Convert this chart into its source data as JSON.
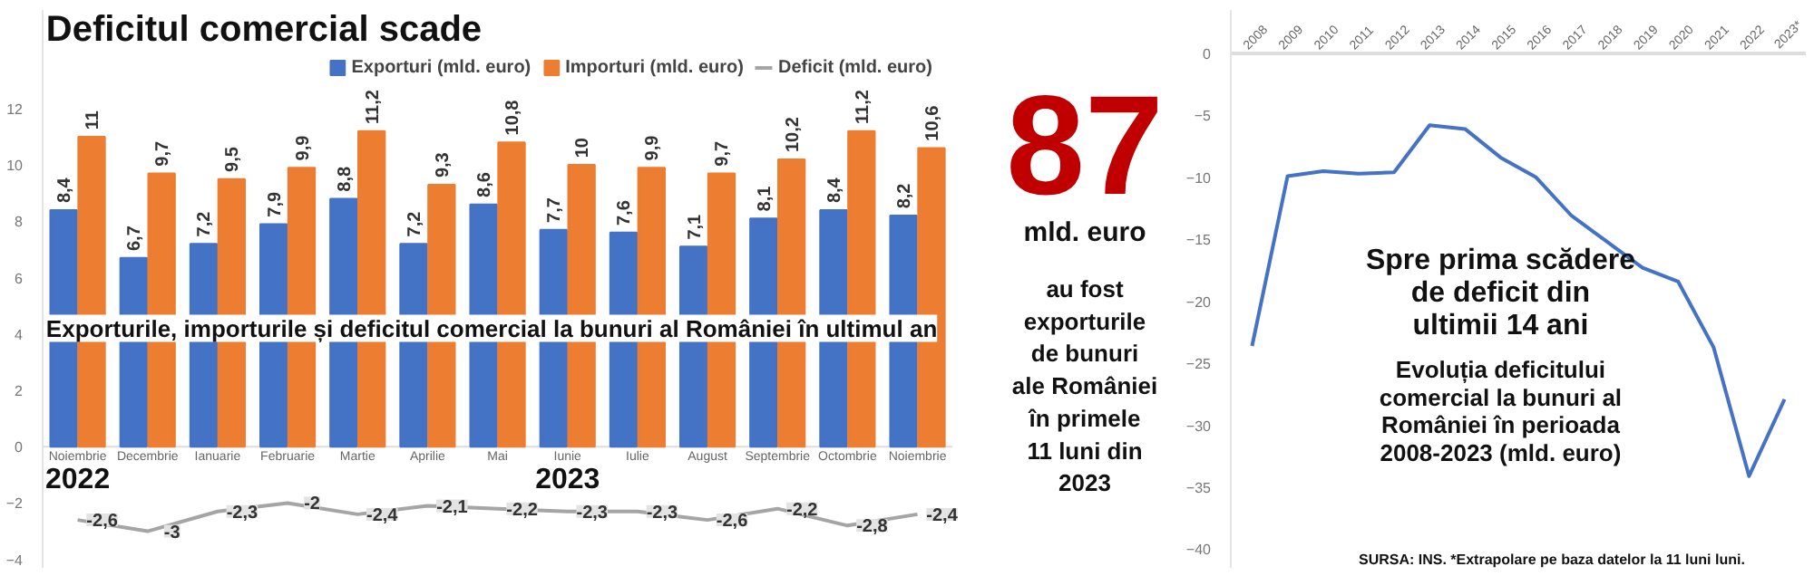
{
  "chart_data": [
    {
      "type": "bar",
      "title": "Deficitul comercial scade",
      "subtitle": "Exporturile, importurile și deficitul comercial la bunuri al României în ultimul an",
      "categories": [
        "Noiembrie",
        "Decembrie",
        "Ianuarie",
        "Februarie",
        "Martie",
        "Aprilie",
        "Mai",
        "Iunie",
        "Iulie",
        "August",
        "Septembrie",
        "Octombrie",
        "Noiembrie"
      ],
      "series": [
        {
          "name": "Exporturi (mld. euro)",
          "color": "#4472c4",
          "values": [
            8.4,
            6.7,
            7.2,
            7.9,
            8.8,
            7.2,
            8.6,
            7.7,
            7.6,
            7.1,
            8.1,
            8.4,
            8.2
          ],
          "value_labels": [
            "8,4",
            "6,7",
            "7,2",
            "7,9",
            "8,8",
            "7,2",
            "8,6",
            "7,7",
            "7,6",
            "7,1",
            "8,1",
            "8,4",
            "8,2"
          ]
        },
        {
          "name": "Importuri (mld. euro)",
          "color": "#ed7d31",
          "values": [
            11,
            9.7,
            9.5,
            9.9,
            11.2,
            9.3,
            10.8,
            10,
            9.9,
            9.7,
            10.2,
            11.2,
            10.6
          ],
          "value_labels": [
            "11",
            "9,7",
            "9,5",
            "9,9",
            "11,2",
            "9,3",
            "10,8",
            "10",
            "9,9",
            "9,7",
            "10,2",
            "11,2",
            "10,6"
          ]
        },
        {
          "name": "Deficit (mld. euro)",
          "type": "line",
          "color": "#a5a5a5",
          "values": [
            -2.6,
            -3,
            -2.3,
            -2,
            -2.4,
            -2.1,
            -2.2,
            -2.3,
            -2.3,
            -2.6,
            -2.2,
            -2.8,
            -2.4
          ],
          "value_labels": [
            "-2,6",
            "-3",
            "-2,3",
            "-2",
            "-2,4",
            "-2,1",
            "-2,2",
            "-2,3",
            "-2,3",
            "-2,6",
            "-2,2",
            "-2,8",
            "-2,4"
          ]
        }
      ],
      "ylim": [
        -4.3,
        15.5
      ],
      "yticks": [
        -4,
        -2,
        0,
        2,
        4,
        6,
        8,
        10,
        12
      ],
      "grid": false,
      "legend": "top right",
      "annotations": [
        "2022",
        "2023"
      ]
    },
    {
      "type": "other",
      "title": "87",
      "subtitle": "mld. euro",
      "annotations": [
        "au fost exporturile de bunuri ale României în primele 11 luni din 2023"
      ]
    },
    {
      "type": "line",
      "title": "Spre prima scădere de deficit din ultimii 14 ani",
      "subtitle": "Evoluția deficitului comercial la bunuri al României în perioada 2008-2023 (mld. euro)",
      "categories": [
        "2008",
        "2009",
        "2010",
        "2011",
        "2012",
        "2013",
        "2014",
        "2015",
        "2016",
        "2017",
        "2018",
        "2019",
        "2020",
        "2021",
        "2022",
        "2023*"
      ],
      "series": [
        {
          "color": "#4472c4",
          "values": [
            -23.6,
            -9.9,
            -9.5,
            -9.7,
            -9.6,
            -5.8,
            -6.1,
            -8.4,
            -10.0,
            -13.1,
            -15.2,
            -17.3,
            -18.4,
            -23.7,
            -34.1,
            -27.9
          ]
        }
      ],
      "ylim": [
        -41.5,
        3.5
      ],
      "yticks": [
        -40,
        -35,
        -30,
        -25,
        -20,
        -15,
        -10,
        -5,
        0
      ],
      "grid": false,
      "marker": "none",
      "annotations": [
        "SURSA: INS.  *Extrapolare pe baza datelor la 11 luni luni."
      ]
    }
  ]
}
